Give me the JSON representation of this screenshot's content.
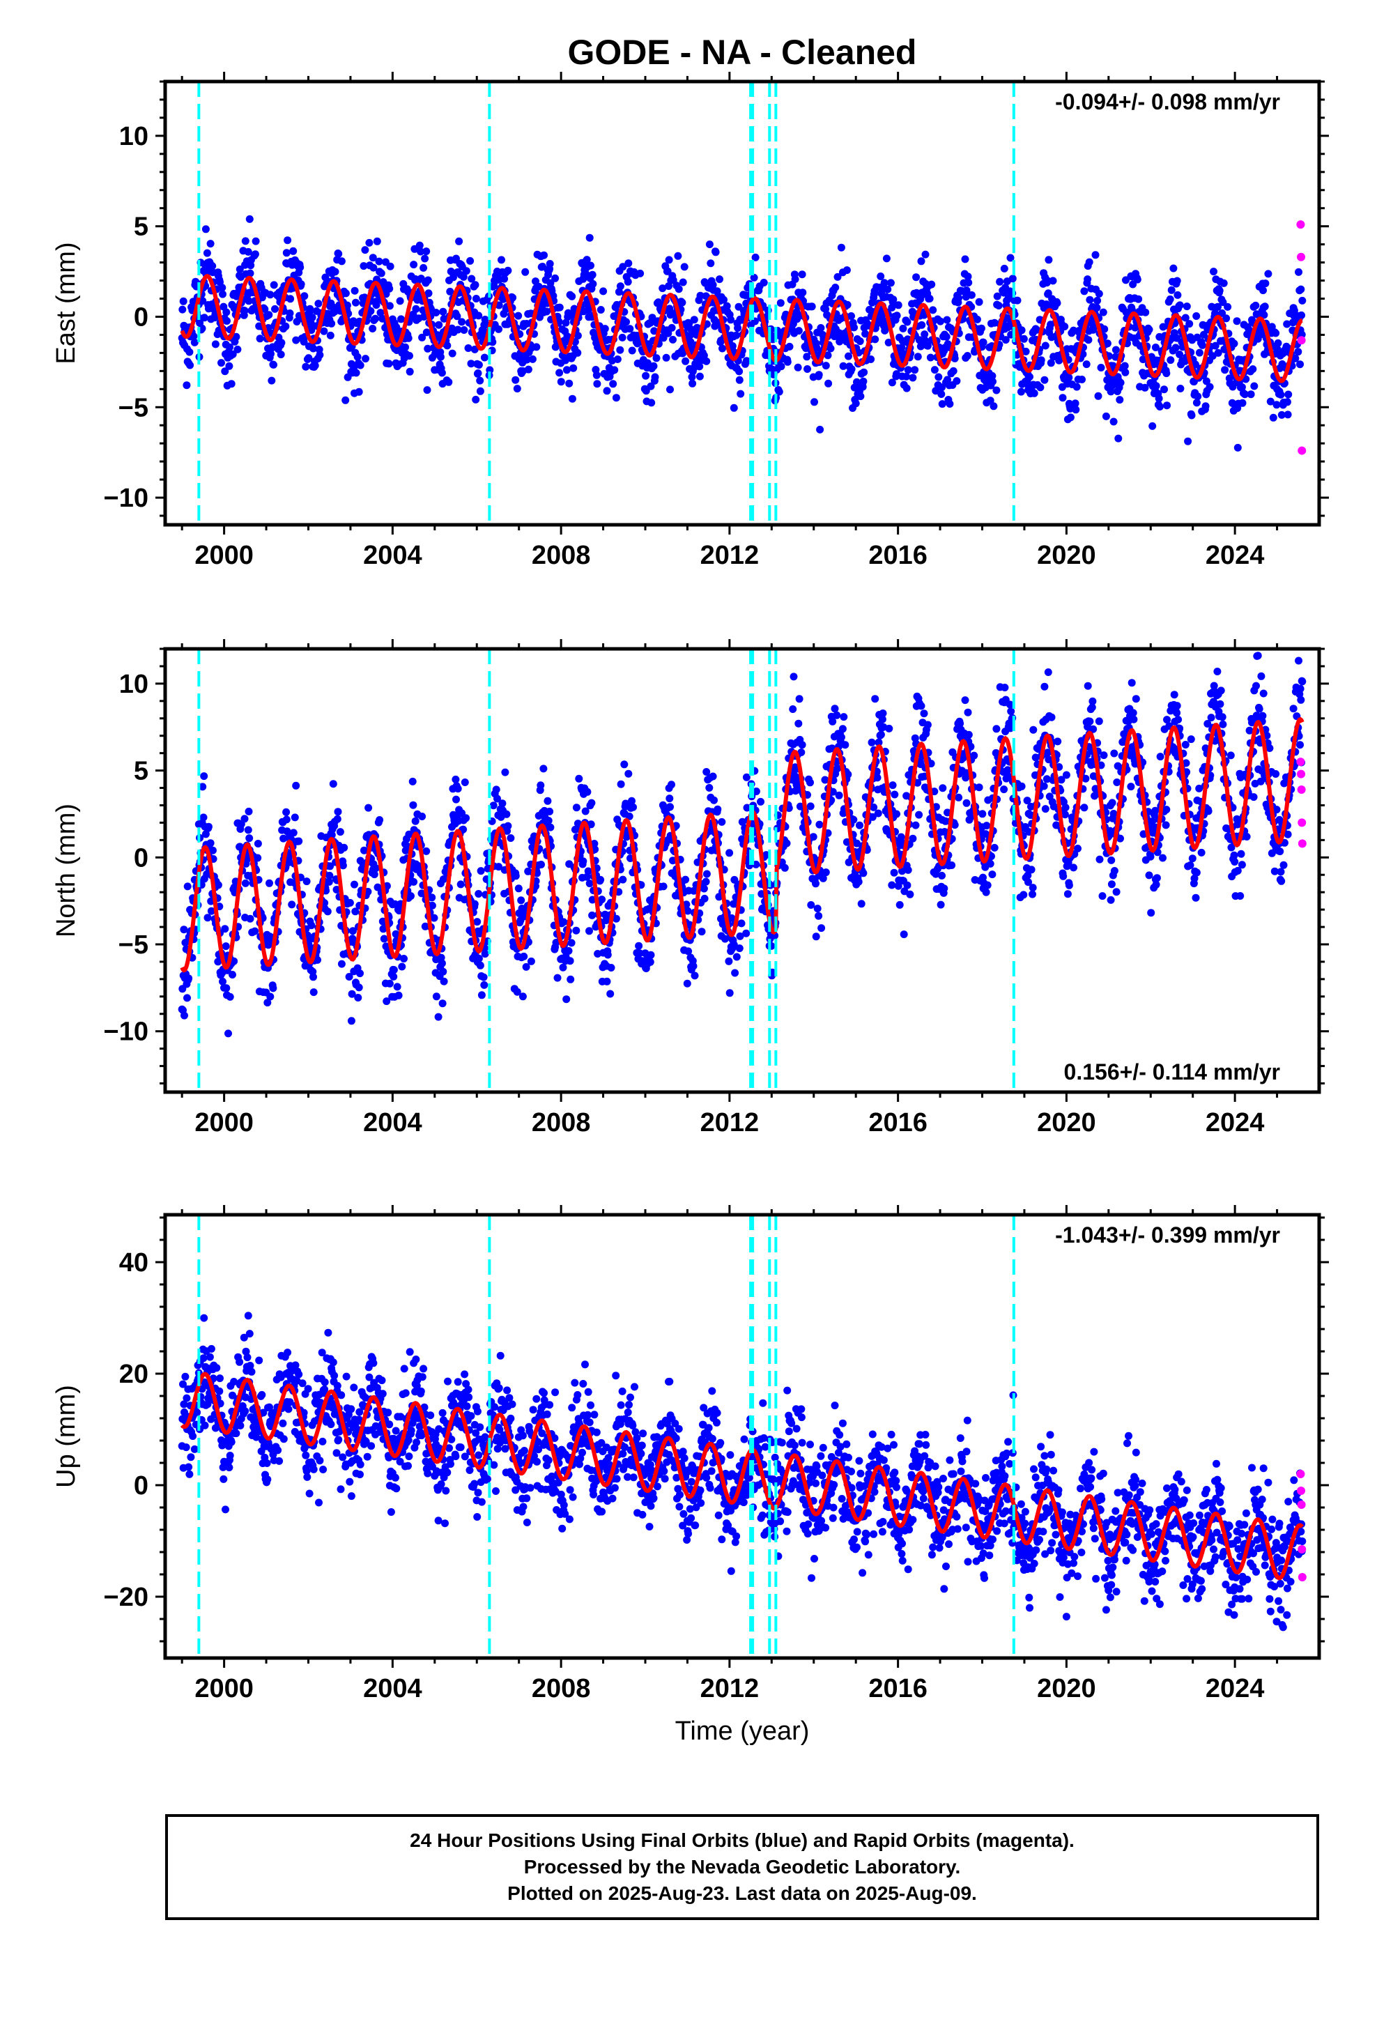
{
  "title": "GODE  - NA - Cleaned",
  "xlabel": "Time (year)",
  "footer": {
    "line1": "24 Hour Positions Using Final Orbits (blue) and Rapid Orbits (magenta).",
    "line2": "Processed by the Nevada Geodetic Laboratory.",
    "line3": "Plotted on 2025-Aug-23. Last data on 2025-Aug-09."
  },
  "colors": {
    "final_orbits": "#0000ff",
    "rapid_orbits": "#ff00ff",
    "model_fit": "#ff0000",
    "equipment_changes": "#00ffff"
  },
  "chart_data": [
    {
      "type": "scatter",
      "name": "east",
      "ylabel": "East (mm)",
      "rate_text": "-0.094+/- 0.098 mm/yr",
      "rate_position": "top-right",
      "xlim": [
        1998.6,
        2026.0
      ],
      "ylim": [
        -11.5,
        13.0
      ],
      "x_ticks": [
        2000,
        2004,
        2008,
        2012,
        2016,
        2020,
        2024
      ],
      "y_ticks": [
        -10,
        -5,
        0,
        5,
        10
      ],
      "grid": false,
      "data_range_years": [
        1999.0,
        2025.6
      ],
      "trend_at_start": 0.6,
      "rate_mm_per_yr": -0.094,
      "seasonal_amplitude_mm": 1.7,
      "scatter_sigma_mm": 1.3,
      "seasonal_peak_fraction_of_year": 0.6,
      "vertical_markers": [
        1999.4,
        2006.3,
        2012.5,
        2012.55,
        2012.95,
        2013.1,
        2018.75
      ],
      "rapid_points": [
        {
          "x": 2025.56,
          "y": 5.1
        },
        {
          "x": 2025.57,
          "y": 3.3
        },
        {
          "x": 2025.58,
          "y": -1.3
        },
        {
          "x": 2025.59,
          "y": -7.4
        }
      ]
    },
    {
      "type": "scatter",
      "name": "north",
      "ylabel": "North (mm)",
      "rate_text": "0.156+/- 0.114 mm/yr",
      "rate_position": "bottom-right",
      "xlim": [
        1998.6,
        2026.0
      ],
      "ylim": [
        -13.5,
        12.0
      ],
      "x_ticks": [
        2000,
        2004,
        2008,
        2012,
        2016,
        2020,
        2024
      ],
      "y_ticks": [
        -10,
        -5,
        0,
        5,
        10
      ],
      "grid": false,
      "data_range_years": [
        1999.0,
        2025.6
      ],
      "trend_at_start": -3.0,
      "rate_mm_per_yr": 0.156,
      "offset_after_2013": 3.3,
      "seasonal_amplitude_mm": 3.5,
      "scatter_sigma_mm": 1.6,
      "seasonal_peak_fraction_of_year": 0.55,
      "vertical_markers": [
        1999.4,
        2006.3,
        2012.5,
        2012.55,
        2012.95,
        2013.1,
        2018.75
      ],
      "rapid_points": [
        {
          "x": 2025.56,
          "y": 5.5
        },
        {
          "x": 2025.57,
          "y": 4.8
        },
        {
          "x": 2025.58,
          "y": 3.9
        },
        {
          "x": 2025.59,
          "y": 2.0
        },
        {
          "x": 2025.6,
          "y": 0.8
        }
      ]
    },
    {
      "type": "scatter",
      "name": "up",
      "ylabel": "Up (mm)",
      "rate_text": "-1.043+/- 0.399 mm/yr",
      "rate_position": "top-right",
      "xlim": [
        1998.6,
        2026.0
      ],
      "ylim": [
        -31.0,
        48.5
      ],
      "x_ticks": [
        2000,
        2004,
        2008,
        2012,
        2016,
        2020,
        2024
      ],
      "y_ticks": [
        -20,
        0,
        20,
        40
      ],
      "grid": false,
      "data_range_years": [
        1999.0,
        2025.6
      ],
      "trend_at_start": 15.5,
      "rate_mm_per_yr": -1.043,
      "seasonal_amplitude_mm": 5.0,
      "scatter_sigma_mm": 4.5,
      "seasonal_peak_fraction_of_year": 0.55,
      "vertical_markers": [
        1999.4,
        2006.3,
        2012.5,
        2012.55,
        2012.95,
        2013.1,
        2018.75
      ],
      "rapid_points": [
        {
          "x": 2025.56,
          "y": 2.0
        },
        {
          "x": 2025.57,
          "y": -1.0
        },
        {
          "x": 2025.58,
          "y": -3.5
        },
        {
          "x": 2025.59,
          "y": -11.5
        },
        {
          "x": 2025.6,
          "y": -16.5
        }
      ]
    }
  ]
}
